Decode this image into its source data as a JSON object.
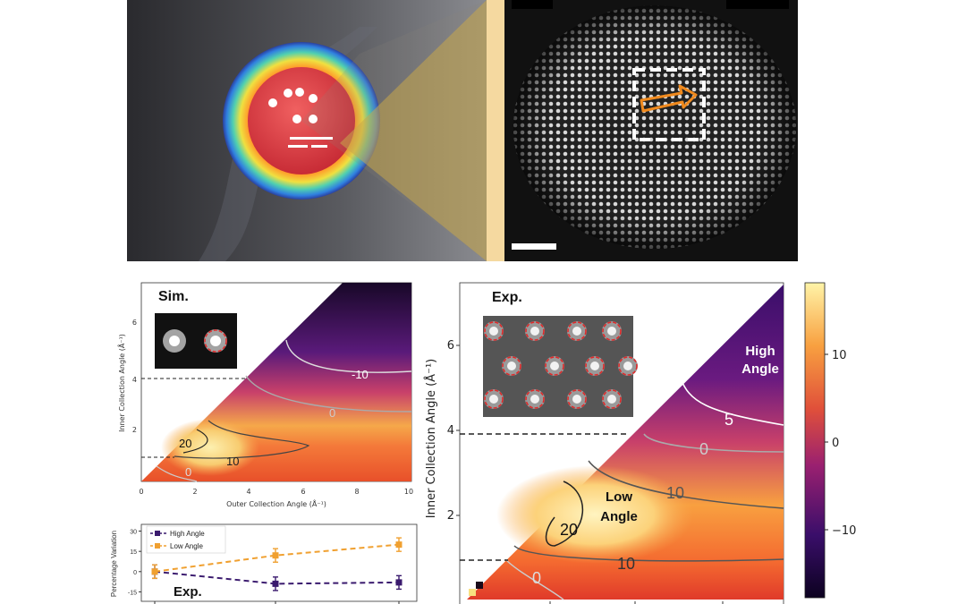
{
  "figure": {
    "sim_panel": {
      "label": "Sim.",
      "xlabel": "Outer Collection Angle (Å⁻¹)",
      "ylabel": "Inner Collection Angle (Å⁻¹)",
      "xticks": [
        "0",
        "2",
        "4",
        "6",
        "8",
        "10"
      ],
      "yticks": [
        "2",
        "4",
        "6"
      ],
      "contours": [
        "-10",
        "0",
        "20",
        "10",
        "0"
      ]
    },
    "exp_panel": {
      "label": "Exp.",
      "ylabel": "Inner Collection Angle (Å⁻¹)",
      "yticks": [
        "2",
        "4",
        "6"
      ],
      "contours": [
        "5",
        "0",
        "10",
        "20",
        "10",
        "0"
      ],
      "high_angle_line1": "High",
      "high_angle_line2": "Angle",
      "low_angle_line1": "Low",
      "low_angle_line2": "Angle"
    },
    "colorbar": {
      "ticks": [
        "10",
        "0",
        "−10"
      ]
    },
    "colors": {
      "high_angle": "#3a1a6e",
      "low_angle": "#f0a030"
    }
  },
  "chart_data": {
    "type": "line",
    "ylabel": "Percentage Variation",
    "yticks": [
      "30",
      "15",
      "0",
      "-15"
    ],
    "ylim": [
      -22,
      35
    ],
    "x": [
      0,
      1,
      2
    ],
    "label": "Exp.",
    "legend_position": "top-left",
    "series": [
      {
        "name": "High Angle",
        "values": [
          0,
          -9,
          -8
        ],
        "errors": [
          5,
          5,
          5
        ]
      },
      {
        "name": "Low Angle",
        "values": [
          0,
          12,
          20
        ],
        "errors": [
          5,
          5,
          5
        ]
      }
    ]
  }
}
